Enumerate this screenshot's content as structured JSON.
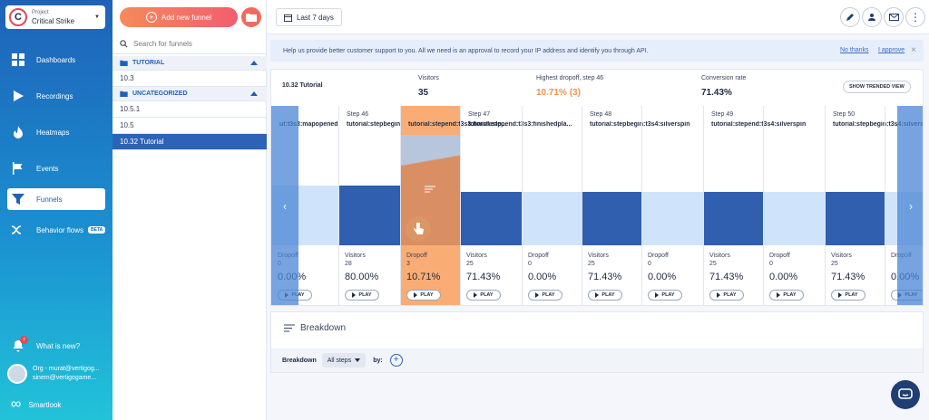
{
  "project": {
    "label": "Project",
    "name": "Critical Strike",
    "logo_letter": "C"
  },
  "nav": [
    {
      "label": "Dashboards",
      "icon": "dashboard-icon"
    },
    {
      "label": "Recordings",
      "icon": "play-icon"
    },
    {
      "label": "Heatmaps",
      "icon": "flame-icon"
    },
    {
      "label": "Events",
      "icon": "flag-icon"
    },
    {
      "label": "Funnels",
      "icon": "funnel-icon",
      "active": true
    },
    {
      "label": "Behavior flows",
      "icon": "flows-icon",
      "badge": "BETA"
    }
  ],
  "sidebar_bottom": {
    "whats_new": "What is new?",
    "notif_count": "7",
    "org_line1": "Org - murat@vertigog...",
    "org_line2": "sinem@vertigogame...",
    "brand": "Smartlook"
  },
  "funnels": {
    "add_label": "Add new funnel",
    "search_placeholder": "Search for funnels",
    "groups": [
      {
        "name": "TUTORIAL",
        "items": [
          "10.3"
        ]
      },
      {
        "name": "UNCATEGORIZED",
        "items": [
          "10.5.1",
          "10.5",
          "10.32 Tutorial"
        ]
      }
    ],
    "selected": "10.32 Tutorial"
  },
  "topbar": {
    "date_range": "Last 7 days"
  },
  "banner": {
    "text": "Help us provide better customer support to you. All we need is an approval to record your IP address and identify you through API.",
    "no_thanks": "No thanks",
    "approve": "I approve",
    "close": "×"
  },
  "summary": {
    "title": "10.32 Tutorial",
    "visitors_label": "Visitors",
    "visitors_value": "35",
    "dropoff_label": "Highest dropoff, step 46",
    "dropoff_value": "10.71% (3)",
    "conversion_label": "Conversion rate",
    "conversion_value": "71.43%",
    "trend_button": "SHOW TRENDED VIEW"
  },
  "columns": [
    {
      "step": "",
      "event": "ut:t3s3:mapopened",
      "metric": "Dropoff",
      "count": "0",
      "pct": "0.00%",
      "kind": "drop",
      "fill": 0.72
    },
    {
      "step": "Step 46",
      "event": "tutorial:stepbegin:t3s3:finishedpla...",
      "metric": "Visitors",
      "count": "28",
      "pct": "80.00%",
      "kind": "visit",
      "fill": 0.72
    },
    {
      "step": "",
      "event": "tutorial:stepend:t3s3:finishedp...",
      "metric": "Dropoff",
      "count": "3",
      "pct": "10.71%",
      "kind": "drop-hl",
      "fill": 0.72
    },
    {
      "step": "Step 47",
      "event": "tutorial:stepend:t3s3:finishedpla...",
      "metric": "Visitors",
      "count": "25",
      "pct": "71.43%",
      "kind": "visit",
      "fill": 0.64
    },
    {
      "step": "",
      "event": "",
      "metric": "Dropoff",
      "count": "0",
      "pct": "0.00%",
      "kind": "drop",
      "fill": 0.64
    },
    {
      "step": "Step 48",
      "event": "tutorial:stepbegin:t3s4:silverspin",
      "metric": "Visitors",
      "count": "25",
      "pct": "71.43%",
      "kind": "visit",
      "fill": 0.64
    },
    {
      "step": "",
      "event": "",
      "metric": "Dropoff",
      "count": "0",
      "pct": "0.00%",
      "kind": "drop",
      "fill": 0.64
    },
    {
      "step": "Step 49",
      "event": "tutorial:stepend:t3s4:silverspin",
      "metric": "Visitors",
      "count": "25",
      "pct": "71.43%",
      "kind": "visit",
      "fill": 0.64
    },
    {
      "step": "",
      "event": "",
      "metric": "Dropoff",
      "count": "0",
      "pct": "0.00%",
      "kind": "drop",
      "fill": 0.64
    },
    {
      "step": "Step 50",
      "event": "tutorial:stepbegin:t3s4:silverspi",
      "metric": "Visitors",
      "count": "25",
      "pct": "71.43%",
      "kind": "visit",
      "fill": 0.64
    },
    {
      "step": "",
      "event": "",
      "metric": "Dropoff",
      "count": "",
      "pct": "0.00%",
      "kind": "drop",
      "fill": 0.64
    }
  ],
  "play_label": "PLAY",
  "breakdown": {
    "title": "Breakdown",
    "label": "Breakdown",
    "select_value": "All steps",
    "by_label": "by:",
    "add": "+"
  },
  "colors": {
    "bar_dark": "#2f5fae",
    "bar_light": "#cfe4fb",
    "highlight": "#f9ad74",
    "accent": "#f25e6e"
  }
}
